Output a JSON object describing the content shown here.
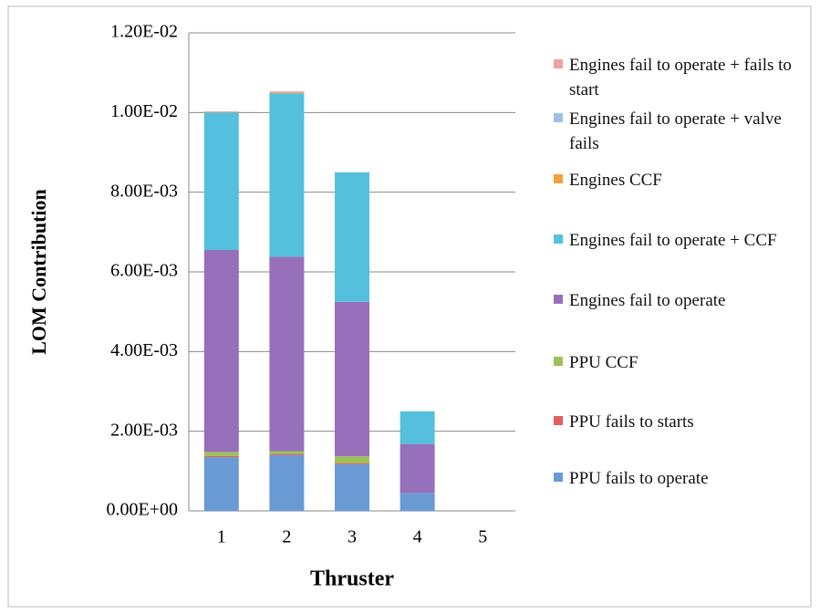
{
  "chart_data": {
    "type": "stacked_bar",
    "ylabel": "LOM Contribution",
    "xlabel": "Thruster",
    "categories": [
      "1",
      "2",
      "3",
      "4",
      "5"
    ],
    "ylim": [
      0,
      0.012
    ],
    "yticks": [
      {
        "value": 0,
        "label": "0.00E+00"
      },
      {
        "value": 0.002,
        "label": "2.00E-03"
      },
      {
        "value": 0.004,
        "label": "4.00E-03"
      },
      {
        "value": 0.006,
        "label": "6.00E-03"
      },
      {
        "value": 0.008,
        "label": "8.00E-03"
      },
      {
        "value": 0.01,
        "label": "1.00E-02"
      },
      {
        "value": 0.012,
        "label": "1.20E-02"
      }
    ],
    "grid": true,
    "series": [
      {
        "name": "PPU fails to operate",
        "color": "#6a9ad6",
        "values": [
          0.00135,
          0.0014,
          0.00117,
          0.00045,
          0
        ]
      },
      {
        "name": "PPU fails to starts",
        "color": "#e06060",
        "values": [
          3e-05,
          3e-05,
          3e-05,
          0,
          0
        ]
      },
      {
        "name": "PPU CCF",
        "color": "#9bc25a",
        "values": [
          0.0001,
          7e-05,
          0.00017,
          0,
          0
        ]
      },
      {
        "name": "Engines fail to operate",
        "color": "#9670bb",
        "values": [
          0.00507,
          0.00488,
          0.00388,
          0.00123,
          0
        ]
      },
      {
        "name": "Engines fail to operate + CCF",
        "color": "#55c0dd",
        "values": [
          0.00345,
          0.0041,
          0.00325,
          0.00082,
          0
        ]
      },
      {
        "name": "Engines CCF",
        "color": "#f4a040",
        "values": [
          1e-05,
          2e-05,
          0,
          0,
          0
        ]
      },
      {
        "name": "Engines fail to operate + valve fails",
        "color": "#a0bfe8",
        "values": [
          1e-05,
          1e-05,
          0,
          0,
          0
        ]
      },
      {
        "name": "Engines fail to operate + fails to start",
        "color": "#f0a0a0",
        "values": [
          1e-05,
          2e-05,
          0,
          0,
          0
        ]
      }
    ]
  }
}
